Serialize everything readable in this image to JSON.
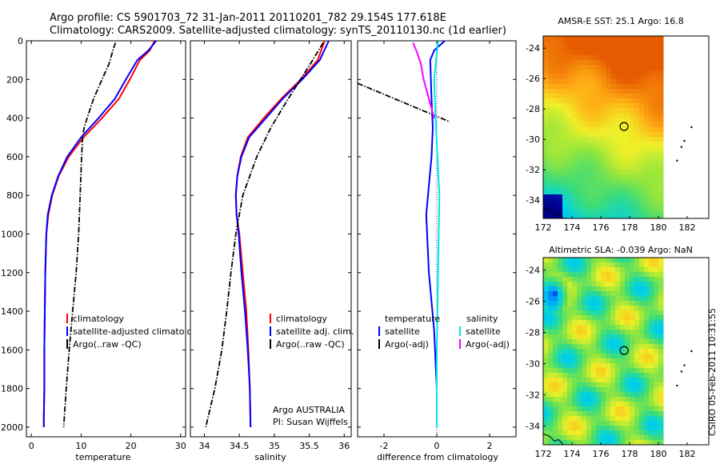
{
  "header": {
    "line1": "Argo profile: CS 5901703_72 31-Jan-2011 20110201_782 29.154S 177.618E",
    "line2": "Climatology: CARS2009. Satellite-adjusted climatology: synTS_20110130.nc (1d earlier)"
  },
  "footer": {
    "sidebar": "CSIRO 05-Feb-2011 10:31:55",
    "credit1": "Argo AUSTRALIA",
    "credit2": "PI: Susan Wijffels"
  },
  "colors": {
    "climatology": "#ff0000",
    "satellite": "#0000ff",
    "argo": "#000000",
    "salinity_satellite": "#00e5ee",
    "salinity_argo": "#ff00ff"
  },
  "chart_data": [
    {
      "type": "line",
      "id": "temperature",
      "xlabel": "temperature",
      "ylabel": "",
      "xlim": [
        -1,
        31
      ],
      "ylim": [
        2050,
        0
      ],
      "xticks": [
        "0",
        "10",
        "20",
        "30"
      ],
      "yticks": [
        "0",
        "200",
        "400",
        "600",
        "800",
        "1000",
        "1200",
        "1400",
        "1600",
        "1800",
        "2000"
      ],
      "series": [
        {
          "name": "climatology",
          "color": "#ff0000",
          "x": [
            24.8,
            23.8,
            21.8,
            19.8,
            17.6,
            14.2,
            10.5,
            7.5,
            5.5,
            4.2,
            3.4,
            3.0,
            2.8,
            2.7,
            2.6,
            2.6,
            2.5,
            2.5
          ],
          "y": [
            0,
            50,
            100,
            200,
            300,
            400,
            500,
            600,
            700,
            800,
            900,
            1000,
            1200,
            1400,
            1600,
            1800,
            1950,
            2000
          ]
        },
        {
          "name": "satellite-adjusted climatology",
          "color": "#0000ff",
          "x": [
            25.1,
            23.5,
            21.3,
            19.0,
            16.8,
            13.5,
            10.0,
            7.2,
            5.4,
            4.1,
            3.3,
            3.0,
            2.8,
            2.7,
            2.6,
            2.6,
            2.5,
            2.5
          ],
          "y": [
            0,
            50,
            100,
            200,
            300,
            400,
            500,
            600,
            700,
            800,
            900,
            1000,
            1200,
            1400,
            1600,
            1800,
            1950,
            2000
          ]
        },
        {
          "name": "Argo(..raw -QC)",
          "color": "#000000",
          "x": [
            16.9,
            16.5,
            15.6,
            14.2,
            12.5,
            11.2,
            10.6,
            10.3,
            10.1,
            9.8,
            9.5,
            9.0,
            8.3,
            7.6,
            7.0,
            6.5
          ],
          "y": [
            10,
            40,
            120,
            200,
            300,
            400,
            450,
            500,
            600,
            800,
            1000,
            1200,
            1400,
            1600,
            1800,
            2000
          ]
        }
      ]
    },
    {
      "type": "line",
      "id": "salinity",
      "xlabel": "salinity",
      "ylabel": "",
      "xlim": [
        33.8,
        36.1
      ],
      "ylim": [
        2050,
        0
      ],
      "xticks": [
        "34",
        "34.5",
        "35",
        "35.5",
        "36"
      ],
      "series": [
        {
          "name": "climatology",
          "color": "#ff0000",
          "x": [
            35.72,
            35.62,
            35.38,
            35.1,
            34.85,
            34.62,
            34.52,
            34.47,
            34.45,
            34.46,
            34.5,
            34.55,
            34.6,
            34.63,
            34.65,
            34.66
          ],
          "y": [
            0,
            100,
            200,
            300,
            400,
            500,
            600,
            700,
            800,
            900,
            1000,
            1200,
            1400,
            1600,
            1800,
            2000
          ]
        },
        {
          "name": "satellite adj. clim.",
          "color": "#0000ff",
          "x": [
            35.78,
            35.65,
            35.4,
            35.12,
            34.88,
            34.64,
            34.53,
            34.47,
            34.45,
            34.46,
            34.49,
            34.53,
            34.58,
            34.62,
            34.65,
            34.66
          ],
          "y": [
            0,
            100,
            200,
            300,
            400,
            500,
            600,
            700,
            800,
            900,
            1000,
            1200,
            1400,
            1600,
            1800,
            2000
          ]
        },
        {
          "name": "Argo(..raw -QC)",
          "color": "#000000",
          "x": [
            35.7,
            35.55,
            35.2,
            34.95,
            34.75,
            34.55,
            34.45,
            34.38,
            34.32,
            34.25,
            34.15,
            34.02
          ],
          "y": [
            10,
            100,
            300,
            450,
            600,
            800,
            1000,
            1200,
            1400,
            1600,
            1800,
            2000
          ]
        }
      ]
    },
    {
      "type": "line",
      "id": "difference",
      "xlabel": "difference from climatology",
      "ylabel": "",
      "xlim": [
        -3.0,
        3.0
      ],
      "ylim": [
        2050,
        0
      ],
      "xticks": [
        "-2",
        "0",
        "2"
      ],
      "legend_titles": [
        "temperature",
        "salinity"
      ],
      "series": [
        {
          "name": "temperature satellite",
          "color": "#0000ff",
          "x": [
            0.3,
            -0.1,
            -0.25,
            -0.2,
            -0.15,
            -0.2,
            -0.4,
            -0.3,
            -0.1,
            0.0,
            0.0
          ],
          "y": [
            0,
            50,
            100,
            300,
            450,
            600,
            900,
            1200,
            1500,
            1800,
            2000
          ]
        },
        {
          "name": "temperature Argo(-adj)",
          "color": "#000000",
          "x": [
            -3.0,
            0.5
          ],
          "y": [
            220,
            420
          ]
        },
        {
          "name": "salinity satellite",
          "color": "#00e5ee",
          "x": [
            0.05,
            -0.1,
            -0.05,
            0.1,
            0.05,
            0.0,
            0.0
          ],
          "y": [
            0,
            200,
            400,
            800,
            1200,
            1600,
            2000
          ]
        },
        {
          "name": "salinity Argo(-adj)",
          "color": "#ff00ff",
          "x": [
            -0.9,
            -0.75,
            -0.6,
            -0.5,
            -0.3,
            -0.1
          ],
          "y": [
            10,
            60,
            120,
            200,
            300,
            400
          ]
        }
      ]
    },
    {
      "type": "heatmap",
      "id": "sst_map",
      "title": "AMSR-E SST: 25.1 Argo: 16.8",
      "xlim": [
        172,
        183.5
      ],
      "ylim": [
        -35.2,
        -23.2
      ],
      "xticks": [
        "172",
        "174",
        "176",
        "178",
        "180",
        "182"
      ],
      "yticks": [
        "-24",
        "-26",
        "-28",
        "-30",
        "-32",
        "-34"
      ],
      "marker": {
        "lon": 177.618,
        "lat": -29.154
      }
    },
    {
      "type": "heatmap",
      "id": "sla_map",
      "title": "Altimetric SLA: -0.039 Argo: NaN",
      "xlim": [
        172,
        183.5
      ],
      "ylim": [
        -35.2,
        -23.2
      ],
      "xticks": [
        "172",
        "174",
        "176",
        "178",
        "180",
        "182"
      ],
      "yticks": [
        "-24",
        "-26",
        "-28",
        "-30",
        "-32",
        "-34"
      ],
      "marker": {
        "lon": 177.618,
        "lat": -29.154
      }
    }
  ],
  "legends": {
    "temperature": [
      "climatology",
      "satellite-adjusted climatology",
      "Argo(..raw -QC)"
    ],
    "salinity": [
      "climatology",
      "satellite adj. clim.",
      "Argo(..raw -QC)"
    ],
    "difference": {
      "temperature_title": "temperature",
      "salinity_title": "salinity",
      "temperature_items": [
        "satellite",
        "Argo(-adj)"
      ],
      "salinity_items": [
        "satellite",
        "Argo(-adj)"
      ]
    }
  }
}
